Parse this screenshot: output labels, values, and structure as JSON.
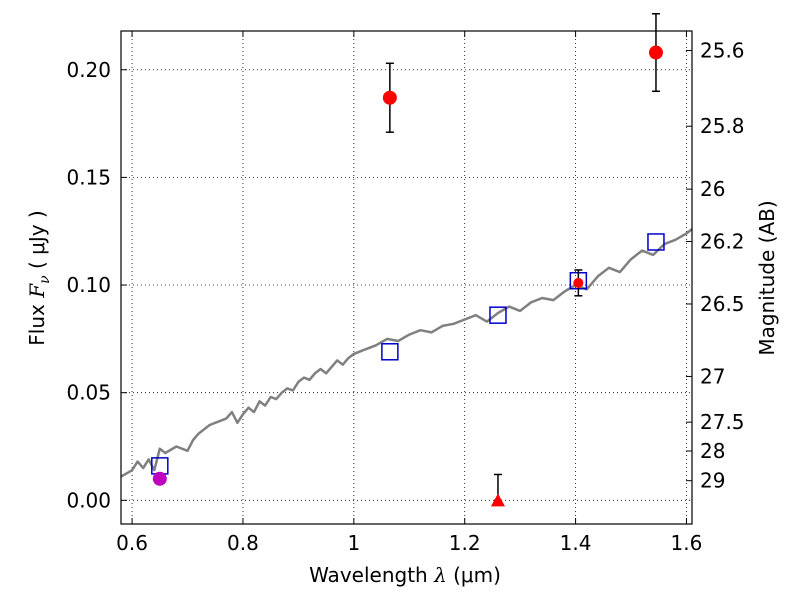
{
  "chart_data": {
    "type": "scatter",
    "xlabel": {
      "prefix": "Wavelength  ",
      "symbol": "λ",
      "unit": " (μm)"
    },
    "ylabel": {
      "prefix": "Flux  ",
      "symbol": "F",
      "sub": "ν",
      "unit": "  ( μJy )"
    },
    "ylabel_right": "Magnitude (AB)",
    "xlim": [
      0.58,
      1.61
    ],
    "ylim": [
      -0.011,
      0.218
    ],
    "grid": true,
    "grid_style": "dotted",
    "x_ticks": [
      0.6,
      0.8,
      1.0,
      1.2,
      1.4,
      1.6
    ],
    "x_tick_labels": [
      "0.6",
      "0.8",
      "1",
      "1.2",
      "1.4",
      "1.6"
    ],
    "y_ticks": [
      0.0,
      0.05,
      0.1,
      0.15,
      0.2
    ],
    "y_tick_labels": [
      "0.00",
      "0.05",
      "0.10",
      "0.15",
      "0.20"
    ],
    "mag_ticks": [
      25.6,
      25.8,
      26,
      26.2,
      26.5,
      27,
      27.5,
      28,
      29
    ],
    "mag_tick_labels": [
      "25.6",
      "25.8",
      "26",
      "26.2",
      "26.5",
      "27",
      "27.5",
      "28",
      "29"
    ],
    "colors": {
      "spectrum": "#808080",
      "observed": "#ff0000",
      "upper_limit": "#ff0000",
      "optical": "#bf00bf",
      "model": "#0000cc",
      "errorbar": "#000000",
      "grid": "#000000"
    },
    "series": [
      {
        "type": "line",
        "x": [
          0.58,
          0.6,
          0.61,
          0.62,
          0.63,
          0.64,
          0.65,
          0.66,
          0.68,
          0.7,
          0.71,
          0.72,
          0.73,
          0.74,
          0.75,
          0.76,
          0.77,
          0.78,
          0.79,
          0.8,
          0.81,
          0.82,
          0.83,
          0.84,
          0.85,
          0.86,
          0.87,
          0.88,
          0.89,
          0.9,
          0.91,
          0.92,
          0.93,
          0.94,
          0.95,
          0.96,
          0.97,
          0.98,
          0.99,
          1.0,
          1.02,
          1.04,
          1.06,
          1.08,
          1.1,
          1.12,
          1.14,
          1.16,
          1.18,
          1.2,
          1.22,
          1.24,
          1.26,
          1.28,
          1.3,
          1.32,
          1.34,
          1.36,
          1.38,
          1.4,
          1.42,
          1.44,
          1.46,
          1.48,
          1.5,
          1.52,
          1.54,
          1.56,
          1.58,
          1.6,
          1.61
        ],
        "y": [
          0.011,
          0.014,
          0.018,
          0.015,
          0.019,
          0.014,
          0.024,
          0.022,
          0.025,
          0.023,
          0.028,
          0.031,
          0.033,
          0.035,
          0.036,
          0.037,
          0.038,
          0.041,
          0.036,
          0.04,
          0.043,
          0.041,
          0.046,
          0.044,
          0.048,
          0.047,
          0.05,
          0.052,
          0.051,
          0.055,
          0.057,
          0.056,
          0.059,
          0.061,
          0.059,
          0.062,
          0.065,
          0.063,
          0.066,
          0.068,
          0.07,
          0.072,
          0.075,
          0.074,
          0.077,
          0.079,
          0.078,
          0.081,
          0.082,
          0.084,
          0.086,
          0.083,
          0.087,
          0.09,
          0.088,
          0.092,
          0.094,
          0.093,
          0.097,
          0.1,
          0.098,
          0.104,
          0.108,
          0.106,
          0.112,
          0.116,
          0.114,
          0.119,
          0.121,
          0.124,
          0.126
        ]
      },
      {
        "type": "scatter",
        "x": [
          1.065,
          1.545
        ],
        "y": [
          0.187,
          0.208
        ],
        "yerr": [
          0.016,
          0.018
        ]
      },
      {
        "type": "upper_limit",
        "x": [
          1.26
        ],
        "y": [
          0.0
        ],
        "yerr_top": [
          0.012
        ]
      },
      {
        "type": "scatter",
        "x": [
          0.65
        ],
        "y": [
          0.01
        ],
        "yerr": [
          0.002
        ]
      },
      {
        "type": "scatter",
        "x": [
          0.65,
          1.065,
          1.26,
          1.405,
          1.545
        ],
        "y": [
          0.016,
          0.069,
          0.086,
          0.102,
          0.12
        ]
      }
    ],
    "extra_points": [
      {
        "x": 1.405,
        "y": 0.101,
        "yerr": 0.006
      }
    ]
  }
}
